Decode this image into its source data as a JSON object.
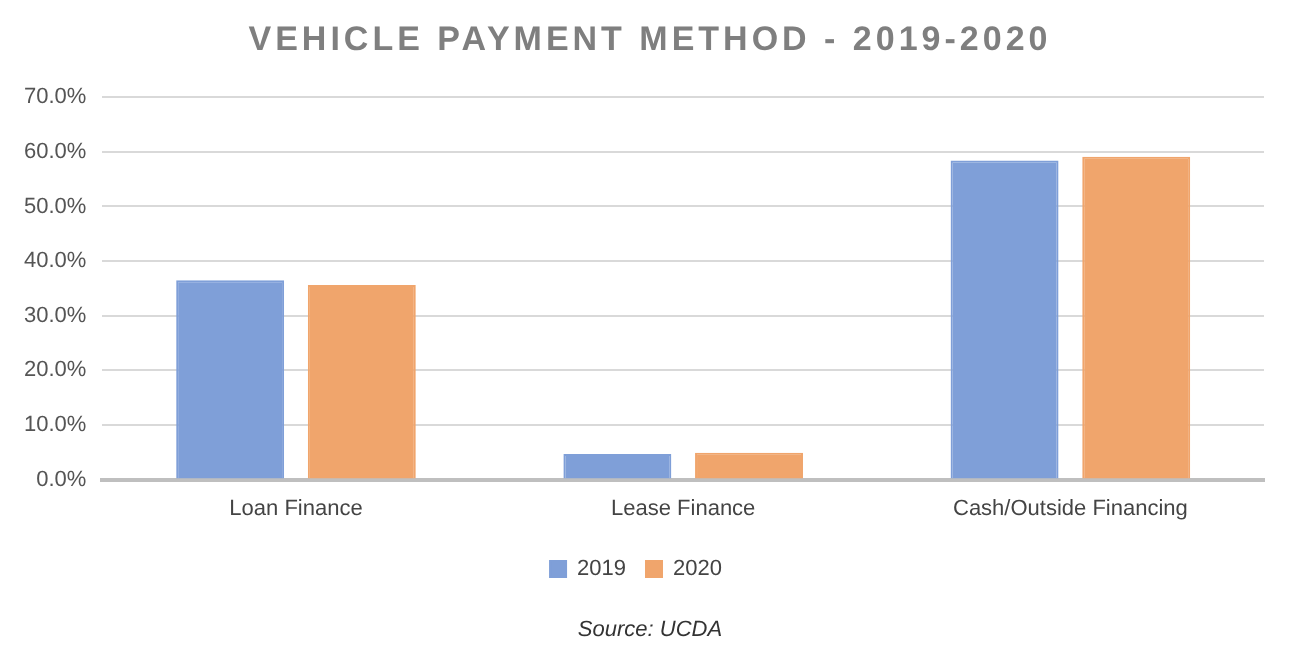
{
  "chart_data": {
    "type": "bar",
    "title": "VEHICLE PAYMENT METHOD - 2019-2020",
    "categories": [
      "Loan Finance",
      "Lease Finance",
      "Cash/Outside Financing"
    ],
    "series": [
      {
        "name": "2019",
        "color": "#7f9fd8",
        "values": [
          36.5,
          4.7,
          58.4
        ]
      },
      {
        "name": "2020",
        "color": "#f0a56c",
        "values": [
          35.6,
          4.9,
          59.1
        ]
      }
    ],
    "ylim": [
      0,
      70
    ],
    "yticks": [
      {
        "value": 0,
        "label": "0.0%"
      },
      {
        "value": 10,
        "label": "10.0%"
      },
      {
        "value": 20,
        "label": "20.0%"
      },
      {
        "value": 30,
        "label": "30.0%"
      },
      {
        "value": 40,
        "label": "40.0%"
      },
      {
        "value": 50,
        "label": "50.0%"
      },
      {
        "value": 60,
        "label": "60.0%"
      },
      {
        "value": 70,
        "label": "70.0%"
      }
    ],
    "grid": "y",
    "legend": "bottom",
    "annotations": [
      "Source: UCDA"
    ]
  }
}
